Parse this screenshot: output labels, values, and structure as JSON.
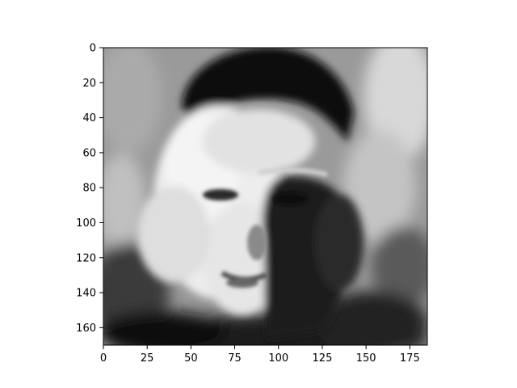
{
  "chart_data": {
    "type": "heatmap",
    "colormap": "gray",
    "title": "",
    "xlabel": "",
    "ylabel": "",
    "xlim": [
      0,
      185
    ],
    "ylim": [
      170,
      0
    ],
    "image_shape": [
      170,
      185
    ],
    "x_ticks": [
      0,
      25,
      50,
      75,
      100,
      125,
      150,
      175
    ],
    "y_ticks": [
      0,
      20,
      40,
      60,
      80,
      100,
      120,
      140,
      160
    ],
    "x_tick_labels": [
      "0",
      "25",
      "50",
      "75",
      "100",
      "125",
      "150",
      "175"
    ],
    "y_tick_labels": [
      "0",
      "20",
      "40",
      "60",
      "80",
      "100",
      "120",
      "140",
      "160"
    ],
    "content": "grayscale portrait of a face: dark hair, bright lit left cheek, shadowed right side"
  }
}
